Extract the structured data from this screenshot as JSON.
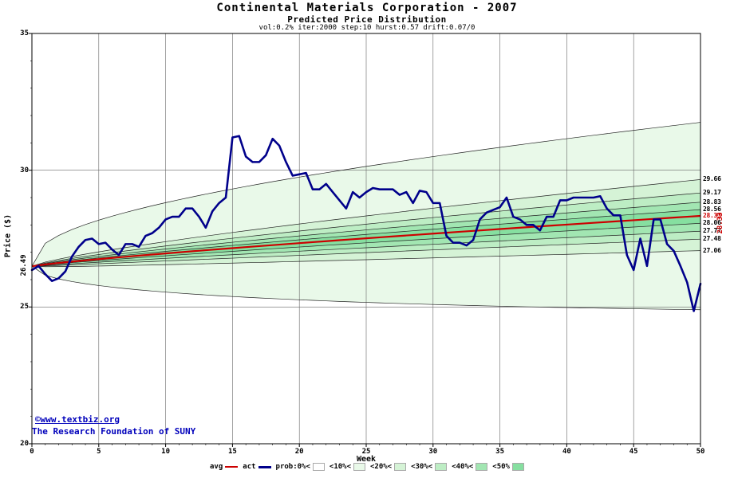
{
  "title": "Continental Materials Corporation - 2007",
  "subtitle": "Predicted Price Distribution",
  "params_line": "vol:0.2% iter:2000 step:10 hurst:0.57 drift:0.07/0",
  "axes": {
    "x_label": "Week",
    "y_label": "Price ($)",
    "start_price_label": "26.49",
    "avg_end_label": "28.33"
  },
  "watermark": {
    "line1": "©www.textbiz.org",
    "line2": "The Research Foundation of SUNY",
    "color": "#0000bb"
  },
  "legend": {
    "items": [
      {
        "label": "avg",
        "type": "line",
        "color": "#cc0000",
        "weight": 2
      },
      {
        "label": "act",
        "type": "line",
        "color": "#00008b",
        "weight": 3
      },
      {
        "label": "prob:0%<",
        "type": "swatch",
        "color": "#ffffff"
      },
      {
        "label": "<10%<",
        "type": "swatch",
        "color": "#e9f9e9"
      },
      {
        "label": "<20%<",
        "type": "swatch",
        "color": "#d5f3d6"
      },
      {
        "label": "<30%<",
        "type": "swatch",
        "color": "#bdedc4"
      },
      {
        "label": "<40%<",
        "type": "swatch",
        "color": "#a2e6b2"
      },
      {
        "label": "<50%",
        "type": "swatch",
        "color": "#86dfa0"
      }
    ]
  },
  "chart_data": {
    "type": "area",
    "title": "Continental Materials Corporation - 2007",
    "subtitle": "Predicted Price Distribution",
    "xlabel": "Week",
    "ylabel": "Price ($)",
    "xlim": [
      0,
      50
    ],
    "ylim": [
      20,
      35
    ],
    "x_ticks": [
      0,
      5,
      10,
      15,
      20,
      25,
      30,
      35,
      40,
      45,
      50
    ],
    "y_ticks": [
      20,
      25,
      30,
      35
    ],
    "grid_x": [
      5,
      10,
      15,
      20,
      25,
      30,
      35,
      40,
      45
    ],
    "grid_y": [
      25,
      30
    ],
    "prediction": {
      "start": 26.49,
      "avg_end": 28.33,
      "avg_color": "#cc0000",
      "exponents": {
        "avg": 0.85,
        "inner": 0.7,
        "max": 0.38,
        "min": 0.55
      },
      "quantile_ends": {
        "max": 31.75,
        "p10_top": 29.66,
        "p20_top": 29.17,
        "p30_top": 28.83,
        "p40_top": 28.56,
        "p40_bot": 28.06,
        "p30_bot": 27.77,
        "p20_bot": 27.48,
        "p10_bot": 27.06,
        "min": 24.9
      },
      "regions": [
        [
          "max",
          "p10_top",
          "#e9f9e9"
        ],
        [
          "p10_top",
          "p20_top",
          "#d5f3d6"
        ],
        [
          "p20_top",
          "p30_top",
          "#bdedc4"
        ],
        [
          "p30_top",
          "p40_top",
          "#a2e6b2"
        ],
        [
          "p40_top",
          "p40_bot",
          "#86dfa0"
        ],
        [
          "p40_bot",
          "p30_bot",
          "#a2e6b2"
        ],
        [
          "p30_bot",
          "p20_bot",
          "#bdedc4"
        ],
        [
          "p20_bot",
          "p10_bot",
          "#d5f3d6"
        ],
        [
          "p10_bot",
          "min",
          "#e9f9e9"
        ]
      ]
    },
    "right_labels": [
      {
        "text": "29.66",
        "value": 29.66,
        "color": "#000000"
      },
      {
        "text": "29.17",
        "value": 29.17,
        "color": "#000000"
      },
      {
        "text": "28.83",
        "value": 28.83,
        "color": "#000000"
      },
      {
        "text": "28.56",
        "value": 28.56,
        "color": "#000000"
      },
      {
        "text": "28.33",
        "value": 28.33,
        "color": "#cc0000"
      },
      {
        "text": "28.06",
        "value": 28.06,
        "color": "#000000"
      },
      {
        "text": "27.77",
        "value": 27.77,
        "color": "#000000"
      },
      {
        "text": "27.48",
        "value": 27.48,
        "color": "#000000"
      },
      {
        "text": "27.06",
        "value": 27.06,
        "color": "#000000"
      }
    ],
    "actual": {
      "name": "act",
      "color": "#00008b",
      "week_start": 0,
      "week_step": 0.5,
      "values": [
        26.35,
        26.5,
        26.2,
        25.95,
        26.05,
        26.3,
        26.85,
        27.2,
        27.45,
        27.5,
        27.3,
        27.35,
        27.1,
        26.9,
        27.3,
        27.3,
        27.2,
        27.6,
        27.7,
        27.9,
        28.2,
        28.3,
        28.3,
        28.6,
        28.6,
        28.3,
        27.9,
        28.5,
        28.8,
        29.0,
        31.2,
        31.25,
        30.5,
        30.3,
        30.3,
        30.55,
        31.15,
        30.9,
        30.3,
        29.8,
        29.85,
        29.9,
        29.3,
        29.3,
        29.5,
        29.2,
        28.9,
        28.6,
        29.2,
        29.0,
        29.2,
        29.35,
        29.3,
        29.3,
        29.3,
        29.1,
        29.2,
        28.8,
        29.25,
        29.2,
        28.8,
        28.8,
        27.6,
        27.35,
        27.35,
        27.25,
        27.45,
        28.2,
        28.45,
        28.55,
        28.65,
        29.0,
        28.3,
        28.2,
        28.0,
        28.0,
        27.8,
        28.3,
        28.3,
        28.9,
        28.9,
        29.0,
        29.0,
        29.0,
        29.0,
        29.05,
        28.6,
        28.35,
        28.35,
        26.9,
        26.35,
        27.5,
        26.5,
        28.2,
        28.2,
        27.3,
        27.05,
        26.5,
        25.9,
        24.85,
        25.85
      ]
    }
  }
}
